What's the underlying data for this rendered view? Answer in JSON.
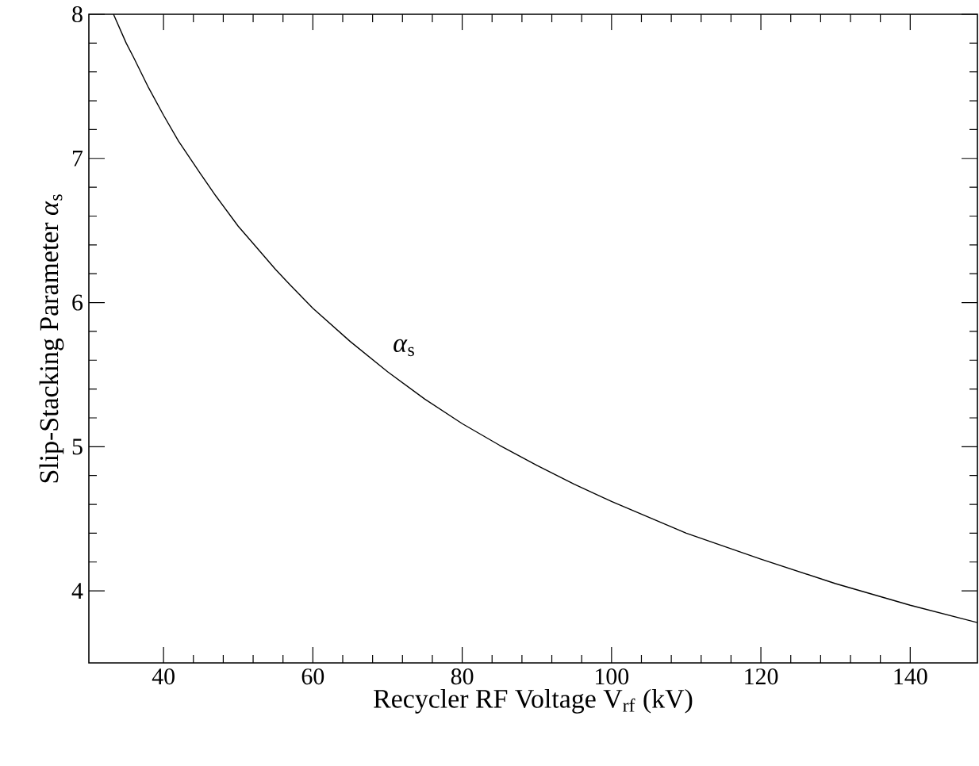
{
  "chart_data": {
    "type": "line",
    "xlabel": "Recycler RF Voltage V$_{rf}$ (kV)",
    "ylabel": "Slip-Stacking Parameter *α*$_{s}$",
    "x": [
      33.3,
      35,
      36,
      38,
      40,
      42,
      45,
      47,
      50,
      52,
      55,
      57,
      60,
      65,
      70,
      75,
      80,
      85,
      90,
      95,
      100,
      110,
      120,
      130,
      140,
      149
    ],
    "series": [
      {
        "color": "#000000",
        "values": [
          8.0,
          7.8,
          7.7,
          7.49,
          7.3,
          7.12,
          6.89,
          6.74,
          6.53,
          6.41,
          6.23,
          6.12,
          5.96,
          5.73,
          5.52,
          5.33,
          5.16,
          5.01,
          4.87,
          4.74,
          4.62,
          4.4,
          4.22,
          4.05,
          3.9,
          3.78
        ]
      }
    ],
    "annotations": [
      "*α*$_{s}$"
    ],
    "xlim": [
      30,
      149
    ],
    "ylim": [
      3.5,
      8
    ],
    "xticks": [
      40,
      60,
      80,
      100,
      120,
      140
    ],
    "yticks": [
      4,
      5,
      6,
      7,
      8
    ]
  }
}
